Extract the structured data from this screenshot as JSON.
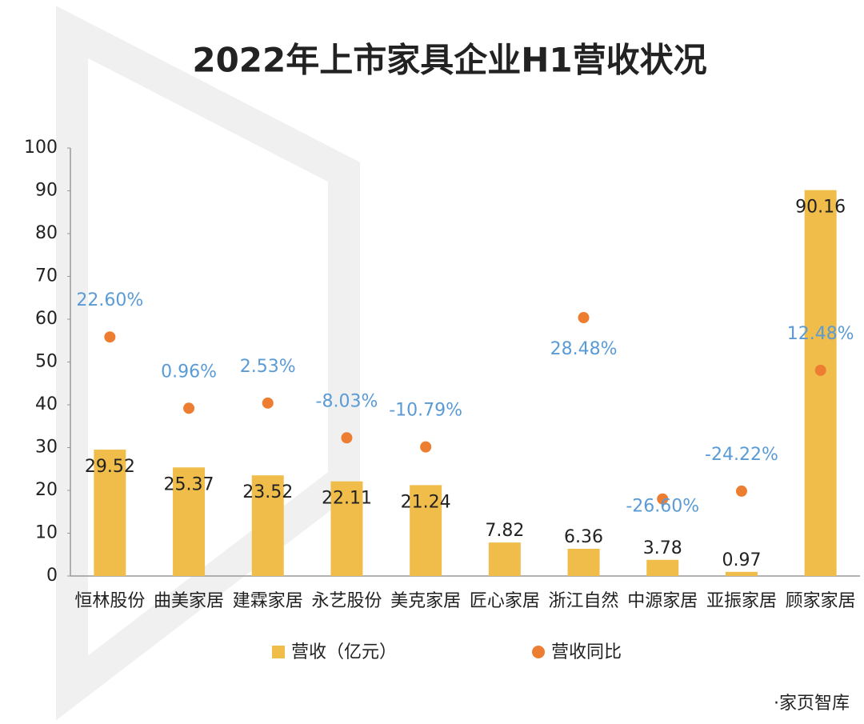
{
  "chart_data": {
    "type": "bar",
    "title": "2022年上市家具企业H1营收状况",
    "categories": [
      "恒林股份",
      "曲美家居",
      "建霖家居",
      "永艺股份",
      "美克家居",
      "匠心家居",
      "浙江自然",
      "中源家居",
      "亚振家居",
      "顾家家居"
    ],
    "series": [
      {
        "name": "营收（亿元）",
        "type": "bar",
        "color": "#f0bd4a",
        "values": [
          29.52,
          25.37,
          23.52,
          22.11,
          21.24,
          7.82,
          6.36,
          3.78,
          0.97,
          90.16
        ]
      },
      {
        "name": "营收同比",
        "type": "scatter",
        "color": "#ed7d31",
        "axis": "y2",
        "label_color": "#5b9bd5",
        "values": [
          22.6,
          0.96,
          2.53,
          -8.03,
          -10.79,
          null,
          28.48,
          -26.6,
          -24.22,
          12.48
        ],
        "value_labels": [
          "22.60%",
          "0.96%",
          "2.53%",
          "-8.03%",
          "-10.79%",
          null,
          "28.48%",
          "-26.60%",
          "-24.22%",
          "12.48%"
        ]
      }
    ],
    "ylim": [
      0,
      100
    ],
    "yticks": [
      0,
      10,
      20,
      30,
      40,
      50,
      60,
      70,
      80,
      90,
      100
    ],
    "y2lim": [
      -50,
      80
    ],
    "grid": false,
    "source": "·家页智库"
  }
}
